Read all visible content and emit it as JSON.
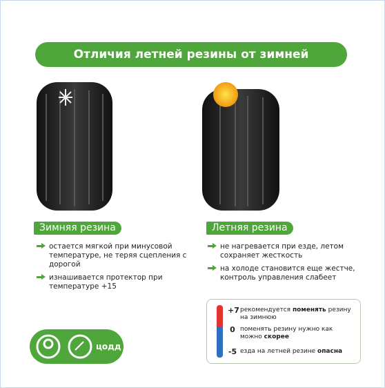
{
  "title": "Отличия летней резины от зимней",
  "winter": {
    "label": "Зимняя резина",
    "bullets": [
      "остается мягкой при минусовой температуре, не теряя сцепления с дорогой",
      "изнашивается протектор при температуре +15"
    ]
  },
  "summer": {
    "label": "Летняя резина",
    "bullets": [
      "не нагревается при езде, летом сохраняет жесткость",
      "на холоде становится еще жестче, контроль управления слабеет"
    ]
  },
  "temperature": [
    {
      "label": "+7",
      "text": [
        {
          "text": "рекомендуется ",
          "bold": false
        },
        {
          "text": "поменять",
          "bold": true
        },
        {
          "text": " резину на зимнюю",
          "bold": false
        }
      ]
    },
    {
      "label": "0",
      "text": [
        {
          "text": "поменять резину нужно как можно ",
          "bold": false
        },
        {
          "text": "скорее",
          "bold": true
        }
      ]
    },
    {
      "label": "-5",
      "text": [
        {
          "text": "езда на летней резине ",
          "bold": false
        },
        {
          "text": "опасна",
          "bold": true
        }
      ]
    }
  ],
  "logo": "цодд"
}
